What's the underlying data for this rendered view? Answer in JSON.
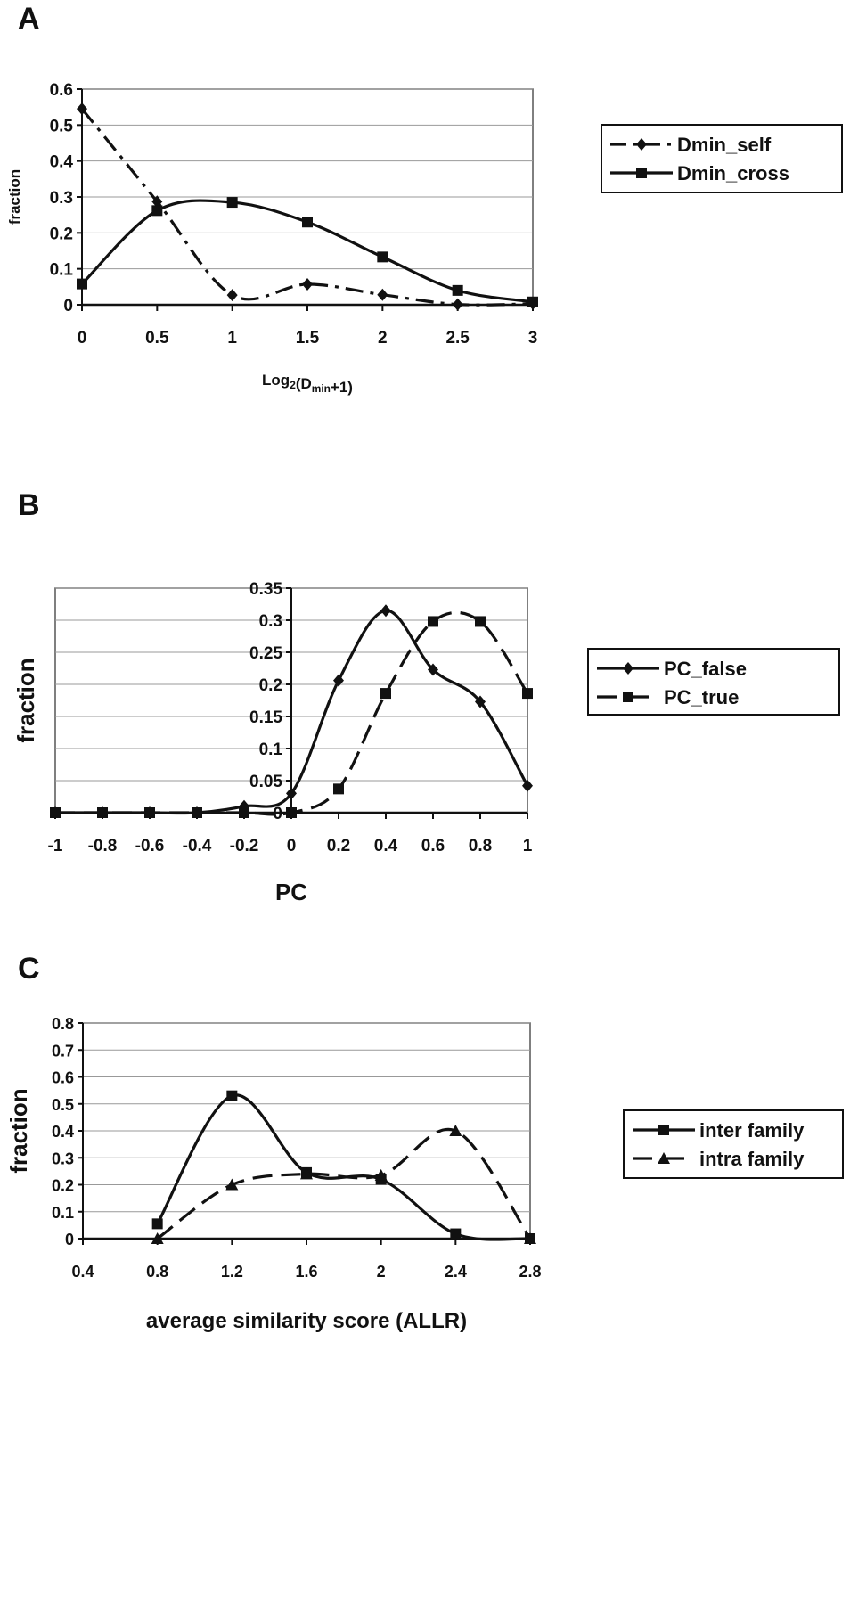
{
  "chart_data": [
    {
      "panel": "A",
      "type": "line",
      "xlabel_main": "Log",
      "xlabel_sub1": "2",
      "xlabel_mid": "(D",
      "xlabel_sub2": "min",
      "xlabel_end": "+1)",
      "ylabel": "fraction",
      "xlim": [
        0,
        3
      ],
      "ylim": [
        0,
        0.6
      ],
      "xticks": [
        "0",
        "0.5",
        "1",
        "1.5",
        "2",
        "2.5",
        "3"
      ],
      "yticks": [
        "0",
        "0.1",
        "0.2",
        "0.3",
        "0.4",
        "0.5",
        "0.6"
      ],
      "grid": "horizontal",
      "legend": "right",
      "x": [
        0,
        0.5,
        1,
        1.5,
        2,
        2.5,
        3
      ],
      "series": [
        {
          "name": "Dmin_self",
          "marker": "diamond",
          "line": "dash-dot",
          "values": [
            0.545,
            0.287,
            0.027,
            0.057,
            0.028,
            0.001,
            0.003
          ]
        },
        {
          "name": "Dmin_cross",
          "marker": "square",
          "line": "solid",
          "values": [
            0.058,
            0.262,
            0.285,
            0.23,
            0.133,
            0.04,
            0.008
          ]
        }
      ]
    },
    {
      "panel": "B",
      "type": "line",
      "xlabel": "PC",
      "ylabel": "fraction",
      "xlim": [
        -1,
        1
      ],
      "ylim": [
        0,
        0.35
      ],
      "xticks": [
        "-1",
        "-0.8",
        "-0.6",
        "-0.4",
        "-0.2",
        "0",
        "0.2",
        "0.4",
        "0.6",
        "0.8",
        "1"
      ],
      "yticks": [
        "0",
        "0.05",
        "0.1",
        "0.15",
        "0.2",
        "0.25",
        "0.3",
        "0.35"
      ],
      "grid": "horizontal",
      "legend": "right",
      "x": [
        -1,
        -0.8,
        -0.6,
        -0.4,
        -0.2,
        0,
        0.2,
        0.4,
        0.6,
        0.8,
        1
      ],
      "series": [
        {
          "name": "PC_false",
          "marker": "diamond",
          "line": "solid",
          "values": [
            0,
            0,
            0,
            0,
            0.01,
            0.03,
            0.206,
            0.315,
            0.223,
            0.173,
            0.042
          ]
        },
        {
          "name": "PC_true",
          "marker": "square",
          "line": "dashed",
          "values": [
            0,
            0,
            0,
            0,
            0,
            0,
            0.037,
            0.186,
            0.298,
            0.298,
            0.186
          ]
        }
      ]
    },
    {
      "panel": "C",
      "type": "line",
      "xlabel": "average similarity score (ALLR)",
      "ylabel": "fraction",
      "xlim": [
        0.4,
        2.8
      ],
      "ylim": [
        0,
        0.8
      ],
      "xticks": [
        "0.4",
        "0.8",
        "1.2",
        "1.6",
        "2",
        "2.4",
        "2.8"
      ],
      "yticks": [
        "0",
        "0.1",
        "0.2",
        "0.3",
        "0.4",
        "0.5",
        "0.6",
        "0.7",
        "0.8"
      ],
      "grid": "horizontal",
      "legend": "right",
      "x": [
        0.8,
        1.2,
        1.6,
        2,
        2.4,
        2.8
      ],
      "series": [
        {
          "name": "inter family",
          "marker": "square",
          "line": "solid",
          "values": [
            0.055,
            0.53,
            0.245,
            0.22,
            0.018,
            0
          ]
        },
        {
          "name": "intra family",
          "marker": "triangle",
          "line": "dashed",
          "values": [
            0,
            0.2,
            0.24,
            0.235,
            0.4,
            0
          ]
        }
      ]
    }
  ]
}
